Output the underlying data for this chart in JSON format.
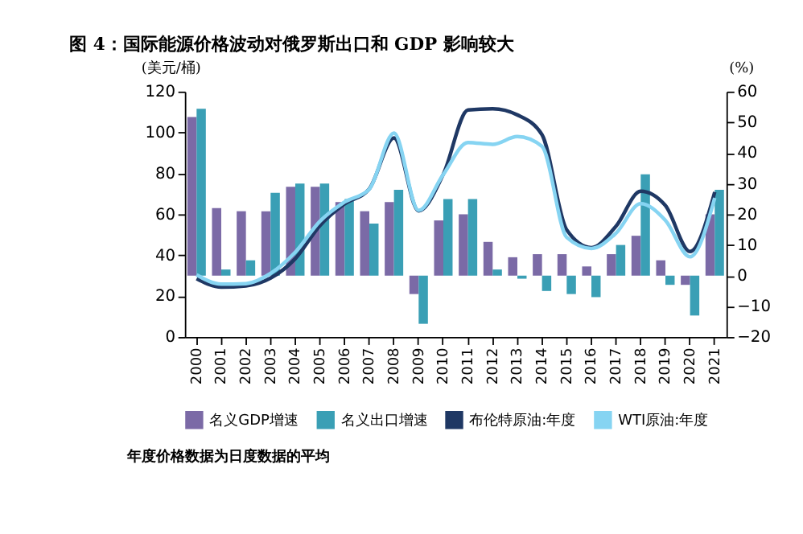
{
  "chart_data": {
    "type": "bar",
    "title": "图 4：国际能源价格波动对俄罗斯出口和 GDP 影响较大",
    "ylabel": "(美元/桶)",
    "y2label": "(%)",
    "categories": [
      "2000",
      "2001",
      "2002",
      "2003",
      "2004",
      "2005",
      "2006",
      "2007",
      "2008",
      "2009",
      "2010",
      "2011",
      "2012",
      "2013",
      "2014",
      "2015",
      "2016",
      "2017",
      "2018",
      "2019",
      "2020",
      "2021"
    ],
    "series": [
      {
        "name": "名义GDP增速",
        "axis": "y2",
        "color": "#7b6aa6",
        "values": [
          51.7,
          22,
          21,
          21,
          29,
          29,
          24,
          21,
          24,
          -6,
          18,
          20,
          11,
          6,
          7,
          7,
          3,
          7,
          13,
          5,
          -3,
          20
        ]
      },
      {
        "name": "名义出口增速",
        "axis": "y2",
        "color": "#3a9fb5",
        "values": [
          54.4,
          2,
          5,
          27,
          30,
          30,
          25,
          17,
          28,
          -15.7,
          25,
          25,
          2,
          -1,
          -5,
          -6,
          -7,
          10,
          33,
          -3,
          -13,
          28
        ]
      },
      {
        "name": "布伦特原油:年度",
        "type": "line",
        "axis": "y",
        "color": "#1f3864",
        "values": [
          28.5,
          24.4,
          25.0,
          28.8,
          38.3,
          54.5,
          65.1,
          72.4,
          97.3,
          61.7,
          79.6,
          111.0,
          111.6,
          108.6,
          98.9,
          52.4,
          43.7,
          54.2,
          71.3,
          64.3,
          41.8,
          70.9
        ]
      },
      {
        "name": "WTI原油:年度",
        "type": "line",
        "axis": "y",
        "color": "#86d4f2",
        "values": [
          30.4,
          25.9,
          26.1,
          31.1,
          41.5,
          56.6,
          66.0,
          72.3,
          99.7,
          61.9,
          79.5,
          95.1,
          94.2,
          98.0,
          93.2,
          48.7,
          43.3,
          50.8,
          65.2,
          57.0,
          39.2,
          68.0
        ]
      }
    ],
    "ylim": [
      0,
      120
    ],
    "yticks": [
      0,
      20,
      40,
      60,
      80,
      100,
      120
    ],
    "y2lim": [
      -20,
      60
    ],
    "y2ticks": [
      -20,
      -10,
      0,
      10,
      20,
      30,
      40,
      50,
      60
    ],
    "grid": false,
    "legend": "bottom",
    "annotations": [
      "年度价格数据为日度数据的平均"
    ]
  }
}
